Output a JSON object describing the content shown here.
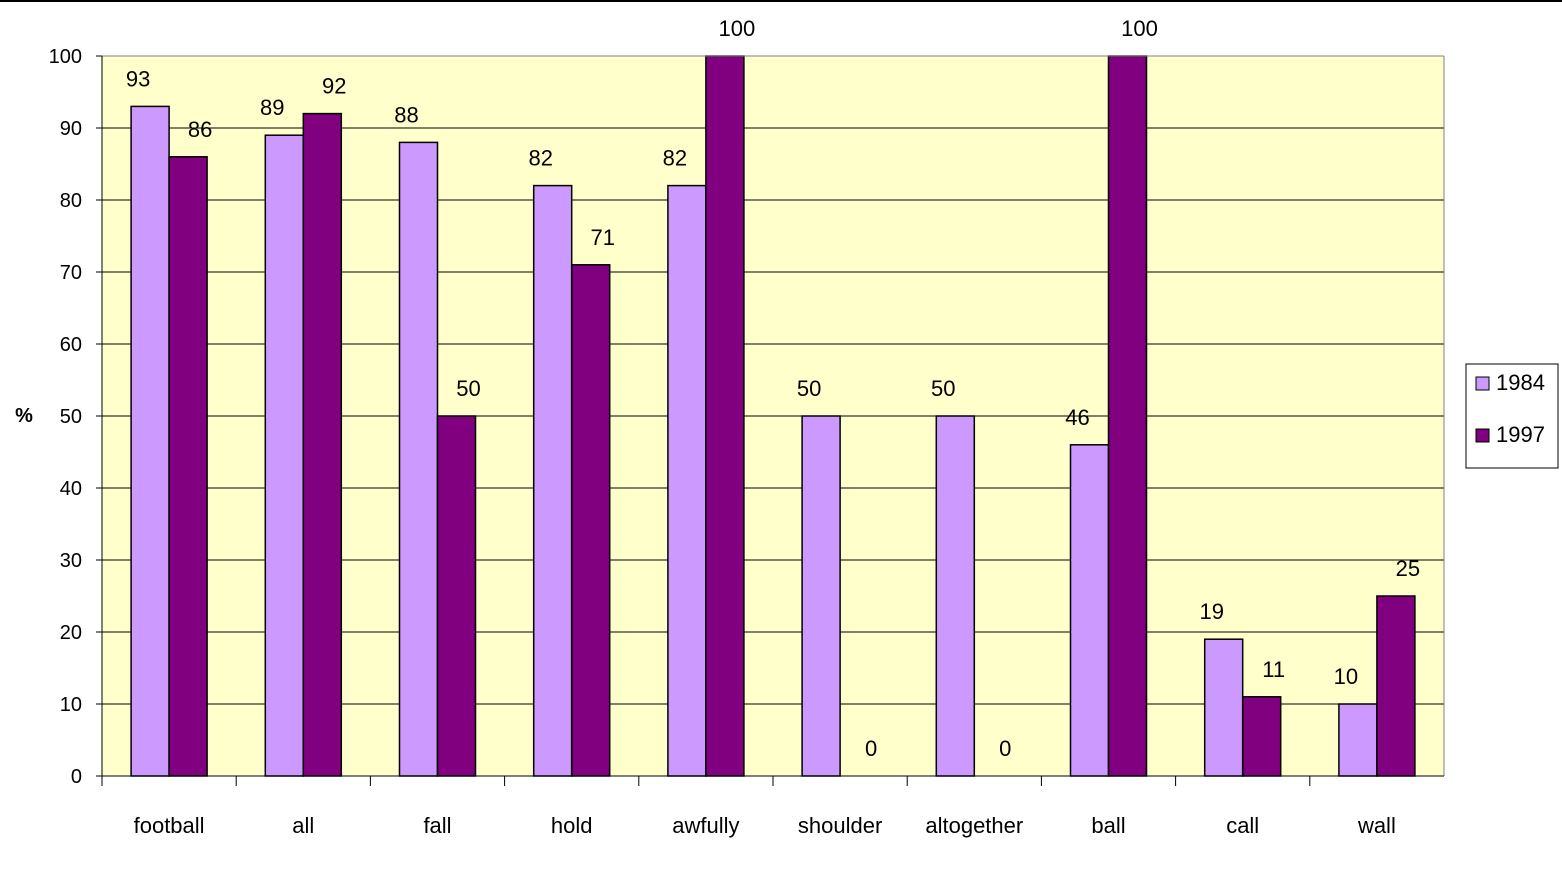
{
  "chart_data": {
    "type": "bar",
    "title": "",
    "xlabel": "",
    "ylabel": "%",
    "ylim": [
      0,
      100
    ],
    "ytick_step": 10,
    "yticks": [
      "0",
      "10",
      "20",
      "30",
      "40",
      "50",
      "60",
      "70",
      "80",
      "90",
      "100"
    ],
    "grid": true,
    "legend_position": "right",
    "categories": [
      "football",
      "all",
      "fall",
      "hold",
      "awfully",
      "shoulder",
      "altogether",
      "ball",
      "call",
      "wall"
    ],
    "series": [
      {
        "name": "1984",
        "color": "#cc99ff",
        "values": [
          93,
          89,
          88,
          82,
          82,
          50,
          50,
          46,
          19,
          10
        ]
      },
      {
        "name": "1997",
        "color": "#800080",
        "values": [
          86,
          92,
          50,
          71,
          100,
          0,
          0,
          100,
          11,
          25
        ]
      }
    ],
    "plot_background": "#ffffcc"
  }
}
